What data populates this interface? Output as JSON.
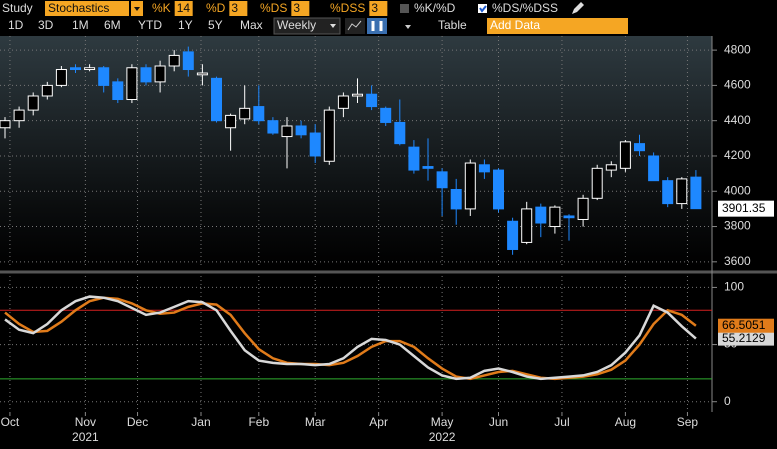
{
  "toolbar": {
    "study_label": "Study",
    "study": "Stochastics",
    "params": [
      {
        "label": "%K",
        "value": 14
      },
      {
        "label": "%D",
        "value": 3
      },
      {
        "label": "%DS",
        "value": 3
      },
      {
        "label": "%DSS",
        "value": 3
      }
    ],
    "toggles": [
      "%K/%D",
      "%DS/%DSS"
    ],
    "ranges": [
      "1D",
      "3D",
      "1M",
      "6M",
      "YTD",
      "1Y",
      "5Y",
      "Max"
    ],
    "period": "Weekly",
    "table": "Table",
    "add_data": "Add Data"
  },
  "chart_data": [
    {
      "type": "candlestick",
      "up_color": "#ffffff",
      "down_color": "#1e88ff",
      "grid": true,
      "xlim": [
        -0.5,
        50.3
      ],
      "ylim": [
        3565,
        4880
      ],
      "yticks": [
        3600,
        3800,
        4000,
        4200,
        4400,
        4600,
        4800
      ],
      "open": [
        4360,
        4400,
        4460,
        4540,
        4600,
        4700,
        4690,
        4700,
        4620,
        4520,
        4700,
        4620,
        4710,
        4790,
        4660,
        4640,
        4360,
        4410,
        4480,
        4400,
        4310,
        4370,
        4330,
        4170,
        4470,
        4540,
        4550,
        4470,
        4390,
        4250,
        4140,
        4110,
        4010,
        3900,
        4150,
        4120,
        3830,
        3710,
        3910,
        3800,
        3860,
        3840,
        3960,
        4120,
        4130,
        4270,
        4200,
        4060,
        3930,
        4080
      ],
      "high": [
        4420,
        4480,
        4560,
        4620,
        4710,
        4720,
        4720,
        4710,
        4640,
        4720,
        4720,
        4740,
        4800,
        4820,
        4720,
        4650,
        4440,
        4600,
        4600,
        4420,
        4420,
        4400,
        4380,
        4480,
        4560,
        4640,
        4600,
        4480,
        4520,
        4290,
        4300,
        4130,
        4070,
        4180,
        4180,
        4130,
        3850,
        3940,
        3930,
        3920,
        3870,
        3980,
        4150,
        4170,
        4290,
        4320,
        4220,
        4080,
        4080,
        4120
      ],
      "low": [
        4300,
        4360,
        4430,
        4520,
        4590,
        4670,
        4680,
        4560,
        4500,
        4500,
        4600,
        4560,
        4680,
        4650,
        4600,
        4390,
        4230,
        4380,
        4380,
        4320,
        4130,
        4300,
        4160,
        4150,
        4420,
        4500,
        4460,
        4370,
        4260,
        4100,
        4060,
        3860,
        3810,
        3860,
        4070,
        3880,
        3640,
        3700,
        3740,
        3760,
        3720,
        3800,
        3950,
        4080,
        4110,
        4200,
        4060,
        3910,
        3900,
        3900
      ],
      "close": [
        4400,
        4460,
        4540,
        4600,
        4690,
        4690,
        4700,
        4600,
        4520,
        4700,
        4620,
        4710,
        4770,
        4690,
        4670,
        4400,
        4430,
        4470,
        4400,
        4330,
        4370,
        4320,
        4200,
        4460,
        4540,
        4550,
        4480,
        4390,
        4270,
        4120,
        4130,
        4020,
        3900,
        4160,
        4110,
        3900,
        3670,
        3900,
        3820,
        3910,
        3850,
        3960,
        4130,
        4150,
        4280,
        4230,
        4060,
        3930,
        4070,
        3901.35
      ]
    },
    {
      "type": "line",
      "grid": true,
      "xlim": [
        -0.5,
        50.3
      ],
      "ylim": [
        -9,
        110
      ],
      "yticks": [
        0,
        50,
        100
      ],
      "levels": [
        {
          "value": 80,
          "color": "#d42020"
        },
        {
          "value": 20,
          "color": "#2fae2f"
        }
      ],
      "xticks": [
        {
          "value": 0.35,
          "label": "Oct"
        },
        {
          "value": 5.7,
          "label": "Nov"
        },
        {
          "value": 9.4,
          "label": "Dec"
        },
        {
          "value": 13.9,
          "label": "Jan"
        },
        {
          "value": 18,
          "label": "Feb"
        },
        {
          "value": 22,
          "label": "Mar"
        },
        {
          "value": 26.5,
          "label": "Apr"
        },
        {
          "value": 31,
          "label": "May"
        },
        {
          "value": 35,
          "label": "Jun"
        },
        {
          "value": 39.5,
          "label": "Jul"
        },
        {
          "value": 44,
          "label": "Aug"
        },
        {
          "value": 48.4,
          "label": "Sep"
        }
      ],
      "year_ticks": [
        {
          "value": 5.7,
          "label": "2021"
        },
        {
          "value": 31,
          "label": "2022"
        }
      ],
      "series": [
        {
          "name": "%DS",
          "color": "#d8d8d8",
          "values": [
            72,
            63,
            60,
            68,
            80,
            88,
            92,
            91,
            88,
            82,
            76,
            78,
            83,
            88,
            87,
            80,
            62,
            45,
            36,
            34,
            33,
            33,
            32,
            33,
            38,
            48,
            55,
            54,
            50,
            40,
            30,
            23,
            20,
            21,
            27,
            29,
            26,
            22,
            20,
            21,
            22,
            23,
            26,
            32,
            43,
            58,
            84,
            78,
            66,
            55.2129
          ]
        },
        {
          "name": "%DSS",
          "color": "#e07b1a",
          "values": [
            78,
            68,
            61,
            62,
            70,
            80,
            88,
            91,
            90,
            86,
            80,
            77,
            78,
            83,
            86,
            85,
            76,
            60,
            46,
            38,
            34,
            33,
            33,
            32,
            34,
            40,
            48,
            53,
            53,
            48,
            38,
            29,
            22,
            20,
            23,
            26,
            27,
            24,
            21,
            20,
            21,
            22,
            24,
            28,
            36,
            50,
            68,
            80,
            76,
            66.5051
          ]
        }
      ]
    }
  ]
}
